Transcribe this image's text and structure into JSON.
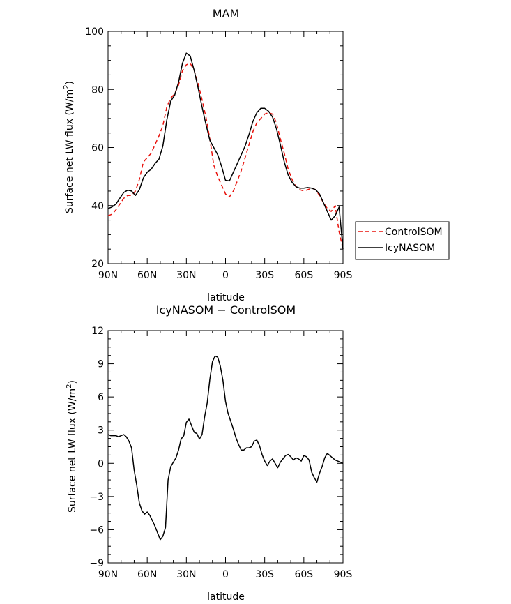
{
  "chart_data": [
    {
      "type": "line",
      "title": "MAM",
      "xlabel": "latitude",
      "ylabel": "Surface net LW flux (W/m²)",
      "ylabel_main": "Surface net LW flux (W/m",
      "ylabel_sup": "2",
      "ylabel_end": ")",
      "x_direction": "north-to-south",
      "xlim": [
        90,
        -90
      ],
      "ylim": [
        20,
        100
      ],
      "x_ticks": [
        90,
        60,
        30,
        0,
        -30,
        -60,
        -90
      ],
      "x_tick_labels": [
        "90N",
        "60N",
        "30N",
        "0",
        "30S",
        "60S",
        "90S"
      ],
      "y_ticks": [
        20,
        40,
        60,
        80,
        100
      ],
      "y_tick_labels": [
        "20",
        "40",
        "60",
        "80",
        "100"
      ],
      "legend_position": "outside-right",
      "series": [
        {
          "name": "ControlSOM",
          "color": "#e8120c",
          "dash": "dashed",
          "x": [
            90,
            87,
            84,
            81,
            78,
            75,
            72,
            69,
            66,
            63,
            60,
            57,
            54,
            51,
            48,
            45,
            42,
            39,
            36,
            33,
            30,
            27,
            24,
            21,
            18,
            15,
            12,
            9,
            6,
            3,
            0,
            -3,
            -6,
            -9,
            -12,
            -15,
            -18,
            -21,
            -24,
            -27,
            -30,
            -33,
            -36,
            -39,
            -42,
            -45,
            -48,
            -51,
            -54,
            -57,
            -60,
            -63,
            -66,
            -69,
            -72,
            -75,
            -78,
            -81,
            -84,
            -87,
            -90
          ],
          "y": [
            36.5,
            37,
            38.5,
            40.5,
            42.5,
            43.5,
            43.5,
            45,
            49,
            55,
            56.5,
            58,
            61,
            64,
            67.5,
            74,
            77,
            78.5,
            81.5,
            86.5,
            88.5,
            89,
            86.5,
            82,
            76.5,
            70.5,
            63,
            54,
            50,
            47,
            44,
            43,
            45,
            48.5,
            52,
            56.5,
            61,
            65.5,
            68.5,
            70,
            71.5,
            72,
            71.5,
            68.5,
            63,
            58,
            52.5,
            49,
            46.5,
            45.5,
            45,
            45.5,
            46,
            45.5,
            43.5,
            41,
            39,
            38,
            40,
            31,
            25
          ]
        },
        {
          "name": "IcyNASOM",
          "color": "#000000",
          "dash": "solid",
          "x": [
            90,
            87,
            84,
            81,
            78,
            75,
            72,
            69,
            66,
            63,
            60,
            57,
            54,
            51,
            48,
            45,
            42,
            39,
            36,
            33,
            30,
            27,
            24,
            21,
            18,
            15,
            12,
            9,
            6,
            3,
            0,
            -3,
            -6,
            -9,
            -12,
            -15,
            -18,
            -21,
            -24,
            -27,
            -30,
            -33,
            -36,
            -39,
            -42,
            -45,
            -48,
            -51,
            -54,
            -57,
            -60,
            -63,
            -66,
            -69,
            -72,
            -75,
            -78,
            -81,
            -84,
            -87,
            -90
          ],
          "y": [
            39,
            39.5,
            40.5,
            42.5,
            44.5,
            45.3,
            45,
            43.5,
            45.5,
            49.5,
            51.5,
            52.5,
            54.5,
            56,
            60.5,
            69.5,
            76,
            78,
            82.5,
            89,
            92.5,
            91.5,
            86.5,
            80.5,
            74,
            68,
            62.5,
            60,
            57.5,
            53.5,
            48.7,
            48.5,
            51.5,
            54.5,
            57.5,
            60.5,
            64.5,
            69,
            72,
            73.5,
            73.5,
            72.5,
            70.5,
            66.5,
            61,
            55,
            50.5,
            48,
            46.5,
            46,
            46,
            46.2,
            46,
            45.5,
            44,
            41,
            38,
            35,
            36.5,
            39.5,
            25
          ]
        }
      ]
    },
    {
      "type": "line",
      "title": "IcyNASOM − ControlSOM",
      "xlabel": "latitude",
      "ylabel": "Surface net LW flux (W/m²)",
      "ylabel_main": "Surface net LW flux (W/m",
      "ylabel_sup": "2",
      "ylabel_end": ")",
      "x_direction": "north-to-south",
      "xlim": [
        90,
        -90
      ],
      "ylim": [
        -9,
        12
      ],
      "x_ticks": [
        90,
        60,
        30,
        0,
        -30,
        -60,
        -90
      ],
      "x_tick_labels": [
        "90N",
        "60N",
        "30N",
        "0",
        "30S",
        "60S",
        "90S"
      ],
      "y_ticks": [
        -9,
        -6,
        -3,
        0,
        3,
        6,
        9,
        12
      ],
      "y_tick_labels": [
        "−9",
        "−6",
        "−3",
        "0",
        "3",
        "6",
        "9",
        "12"
      ],
      "series": [
        {
          "color": "#000000",
          "dash": "solid",
          "x": [
            90,
            88,
            86,
            84,
            82,
            80,
            78,
            76,
            74,
            72,
            70,
            68,
            66,
            64,
            62,
            60,
            58,
            56,
            54,
            52,
            50,
            48,
            46,
            44,
            42,
            40,
            38,
            36,
            34,
            32,
            30,
            28,
            26,
            24,
            22,
            20,
            18,
            16,
            14,
            12,
            10,
            8,
            6,
            4,
            2,
            0,
            -2,
            -4,
            -6,
            -8,
            -10,
            -12,
            -14,
            -16,
            -18,
            -20,
            -22,
            -24,
            -26,
            -28,
            -30,
            -32,
            -34,
            -36,
            -38,
            -40,
            -42,
            -44,
            -46,
            -48,
            -50,
            -52,
            -54,
            -56,
            -58,
            -60,
            -62,
            -64,
            -66,
            -68,
            -70,
            -72,
            -74,
            -76,
            -78,
            -80,
            -82,
            -84,
            -86,
            -88,
            -90
          ],
          "y": [
            2.6,
            2.5,
            2.5,
            2.5,
            2.4,
            2.5,
            2.6,
            2.4,
            2.0,
            1.4,
            -0.6,
            -2.0,
            -3.6,
            -4.3,
            -4.6,
            -4.4,
            -4.7,
            -5.2,
            -5.7,
            -6.3,
            -6.9,
            -6.6,
            -5.8,
            -1.5,
            -0.3,
            0.1,
            0.5,
            1.2,
            2.2,
            2.5,
            3.7,
            4.0,
            3.4,
            2.8,
            2.7,
            2.2,
            2.6,
            4.2,
            5.5,
            7.6,
            9.2,
            9.7,
            9.6,
            8.8,
            7.5,
            5.6,
            4.5,
            3.8,
            3.1,
            2.3,
            1.7,
            1.2,
            1.2,
            1.4,
            1.4,
            1.5,
            2.0,
            2.1,
            1.6,
            0.8,
            0.2,
            -0.2,
            0.2,
            0.4,
            0.0,
            -0.4,
            0.1,
            0.4,
            0.7,
            0.8,
            0.6,
            0.3,
            0.5,
            0.4,
            0.2,
            0.7,
            0.6,
            0.3,
            -0.8,
            -1.3,
            -1.7,
            -0.9,
            -0.3,
            0.5,
            0.9,
            0.7,
            0.5,
            0.3,
            0.2,
            0.1,
            0.0
          ]
        }
      ]
    }
  ]
}
